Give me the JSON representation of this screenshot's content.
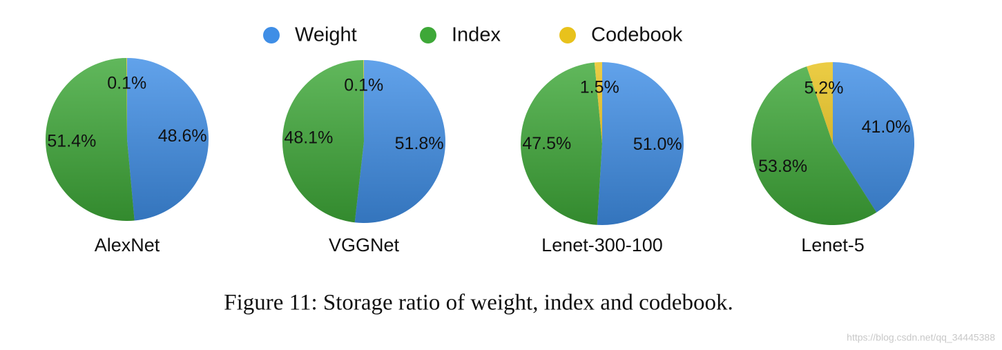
{
  "chart_data": [
    {
      "type": "pie",
      "title": "AlexNet",
      "categories": [
        "Weight",
        "Index",
        "Codebook"
      ],
      "values": [
        48.6,
        51.4,
        0.1
      ],
      "value_labels": [
        "48.6%",
        "51.4%",
        "0.1%"
      ],
      "colors": [
        "#3f8ee6",
        "#3ea838",
        "#e8c21c"
      ]
    },
    {
      "type": "pie",
      "title": "VGGNet",
      "categories": [
        "Weight",
        "Index",
        "Codebook"
      ],
      "values": [
        51.8,
        48.1,
        0.1
      ],
      "value_labels": [
        "51.8%",
        "48.1%",
        "0.1%"
      ],
      "colors": [
        "#3f8ee6",
        "#3ea838",
        "#e8c21c"
      ]
    },
    {
      "type": "pie",
      "title": "Lenet-300-100",
      "categories": [
        "Weight",
        "Index",
        "Codebook"
      ],
      "values": [
        51.0,
        47.5,
        1.5
      ],
      "value_labels": [
        "51.0%",
        "47.5%",
        "1.5%"
      ],
      "colors": [
        "#3f8ee6",
        "#3ea838",
        "#e8c21c"
      ]
    },
    {
      "type": "pie",
      "title": "Lenet-5",
      "categories": [
        "Weight",
        "Index",
        "Codebook"
      ],
      "values": [
        41.0,
        53.8,
        5.2
      ],
      "value_labels": [
        "41.0%",
        "53.8%",
        "5.2%"
      ],
      "colors": [
        "#3f8ee6",
        "#3ea838",
        "#e8c21c"
      ]
    }
  ],
  "caption": "Figure 11: Storage ratio of weight, index and codebook.",
  "watermark": "https://blog.csdn.net/qq_34445388"
}
